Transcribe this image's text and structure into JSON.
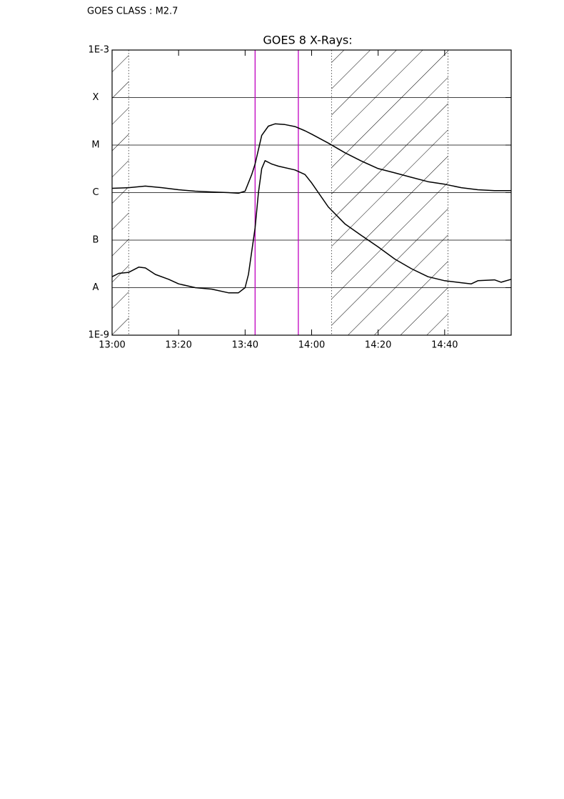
{
  "chart_data": {
    "type": "line",
    "header": "GOES CLASS : M2.7",
    "title": "GOES 8 X-Rays:",
    "log_y": true,
    "grid": true,
    "xlim": [
      "13:00",
      "15:00"
    ],
    "xticks": [
      "13:00",
      "13:20",
      "13:40",
      "14:00",
      "14:20",
      "14:40"
    ],
    "ylim": [
      1e-09,
      0.001
    ],
    "yticks": [
      {
        "value": 0.001,
        "label": "1E-3"
      },
      {
        "value": 0.0001,
        "label": "X"
      },
      {
        "value": 1e-05,
        "label": "M"
      },
      {
        "value": 1e-06,
        "label": "C"
      },
      {
        "value": 1e-07,
        "label": "B"
      },
      {
        "value": 1e-08,
        "label": "A"
      },
      {
        "value": 1e-09,
        "label": "1E-9"
      }
    ],
    "hatched": [
      [
        "13:00",
        "13:05"
      ],
      [
        "14:06",
        "14:41"
      ]
    ],
    "flare_lines": [
      "13:43",
      "13:56"
    ],
    "flare_line_color": "#c000c0",
    "series": [
      {
        "color": "#000000",
        "x": [
          "13:00",
          "13:05",
          "13:10",
          "13:15",
          "13:20",
          "13:25",
          "13:30",
          "13:35",
          "13:38",
          "13:40",
          "13:42",
          "13:43",
          "13:45",
          "13:47",
          "13:49",
          "13:52",
          "13:55",
          "13:58",
          "14:00",
          "14:05",
          "14:10",
          "14:15",
          "14:20",
          "14:25",
          "14:30",
          "14:35",
          "14:40",
          "14:45",
          "14:50",
          "14:55",
          "15:00"
        ],
        "values": [
          1.23e-06,
          1.27e-06,
          1.37e-06,
          1.27e-06,
          1.15e-06,
          1.07e-06,
          1.03e-06,
          1e-06,
          9.7e-07,
          1.07e-06,
          2.4e-06,
          4e-06,
          1.6e-05,
          2.5e-05,
          2.8e-05,
          2.7e-05,
          2.45e-05,
          2e-05,
          1.7e-05,
          1.1e-05,
          6.9e-06,
          4.6e-06,
          3.2e-06,
          2.6e-06,
          2.1e-06,
          1.7e-06,
          1.5e-06,
          1.27e-06,
          1.15e-06,
          1.1e-06,
          1.1e-06
        ]
      },
      {
        "color": "#000000",
        "x": [
          "13:00",
          "13:02",
          "13:05",
          "13:08",
          "13:10",
          "13:13",
          "13:17",
          "13:20",
          "13:25",
          "13:30",
          "13:35",
          "13:38",
          "13:40",
          "13:41",
          "13:43",
          "13:44",
          "13:45",
          "13:46",
          "13:48",
          "13:50",
          "13:55",
          "13:58",
          "14:00",
          "14:05",
          "14:10",
          "14:15",
          "14:20",
          "14:25",
          "14:30",
          "14:35",
          "14:40",
          "14:45",
          "14:48",
          "14:50",
          "14:55",
          "14:57",
          "15:00"
        ],
        "values": [
          1.7e-08,
          2e-08,
          2.1e-08,
          2.7e-08,
          2.6e-08,
          1.9e-08,
          1.5e-08,
          1.2e-08,
          1e-08,
          9.3e-09,
          7.8e-09,
          7.8e-09,
          1e-08,
          1.9e-08,
          1.8e-07,
          1e-06,
          3.2e-06,
          4.7e-06,
          4e-06,
          3.6e-06,
          3e-06,
          2.4e-06,
          1.6e-06,
          5e-07,
          2.2e-07,
          1.25e-07,
          7.2e-08,
          4e-08,
          2.5e-08,
          1.7e-08,
          1.4e-08,
          1.27e-08,
          1.2e-08,
          1.4e-08,
          1.46e-08,
          1.3e-08,
          1.5e-08
        ]
      }
    ]
  }
}
